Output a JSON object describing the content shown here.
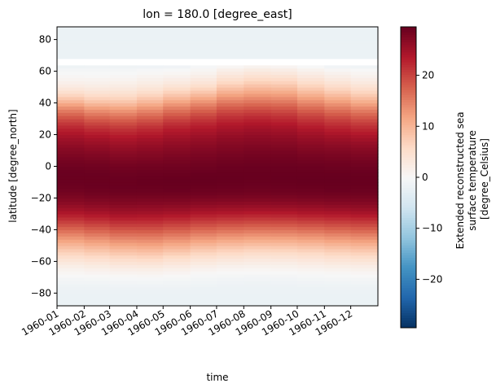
{
  "chart_data": {
    "type": "heatmap",
    "title": "lon = 180.0 [degree_east]",
    "xlabel": "time",
    "ylabel": "latitude [degree_north]",
    "x": [
      "1960-01",
      "1960-02",
      "1960-03",
      "1960-04",
      "1960-05",
      "1960-06",
      "1960-07",
      "1960-08",
      "1960-09",
      "1960-10",
      "1960-11",
      "1960-12"
    ],
    "xlim": [
      "1960-01",
      "1961-01"
    ],
    "ylim": [
      -88,
      88
    ],
    "yticks": [
      -80,
      -60,
      -40,
      -20,
      0,
      20,
      40,
      60,
      80
    ],
    "lat_step": 2,
    "fill_value": -1.8,
    "profile_lat": [
      -88,
      -80,
      -76,
      -74,
      -72,
      -70,
      -68,
      -66,
      -64,
      -62,
      -60,
      -58,
      -56,
      -54,
      -52,
      -50,
      -48,
      -46,
      -44,
      -42,
      -40,
      -38,
      -36,
      -34,
      -32,
      -30,
      -28,
      -26,
      -24,
      -22,
      -20,
      -18,
      -16,
      -14,
      -12,
      -10,
      -8,
      -6,
      -4,
      -2,
      0,
      2,
      4,
      6,
      8,
      10,
      12,
      14,
      16,
      18,
      20,
      22,
      24,
      26,
      28,
      30,
      32,
      34,
      36,
      38,
      40,
      42,
      44,
      46,
      48,
      50,
      52,
      54,
      56,
      58,
      60,
      62,
      64,
      66,
      68,
      70,
      88
    ],
    "profiles": [
      [
        -1.8,
        -1.8,
        -1.5,
        -1.2,
        -0.8,
        -0.3,
        0.2,
        0.8,
        1.5,
        2.5,
        3.5,
        4.6,
        5.8,
        7.0,
        8.3,
        9.6,
        11.0,
        12.4,
        13.8,
        15.3,
        16.7,
        18.2,
        19.7,
        21.0,
        22.3,
        23.5,
        24.5,
        25.5,
        26.3,
        27.0,
        27.6,
        28.1,
        28.6,
        28.9,
        29.1,
        29.2,
        29.3,
        29.3,
        29.2,
        29.1,
        28.9,
        28.6,
        28.3,
        28.0,
        27.6,
        27.2,
        26.7,
        26.2,
        25.6,
        25.0,
        24.3,
        23.5,
        22.6,
        21.6,
        20.5,
        19.2,
        17.8,
        16.3,
        14.6,
        12.8,
        10.9,
        9.0,
        7.2,
        5.6,
        4.2,
        3.0,
        2.0,
        1.2,
        0.6,
        0.1,
        -0.4,
        -0.9,
        -1.8,
        -1.8,
        -1.8,
        -1.8,
        -1.8
      ],
      [
        -1.8,
        -1.8,
        -1.5,
        -1.2,
        -0.7,
        -0.2,
        0.4,
        1.1,
        1.9,
        2.9,
        4.0,
        5.2,
        6.4,
        7.7,
        9.0,
        10.4,
        11.8,
        13.2,
        14.7,
        16.2,
        17.6,
        19.0,
        20.4,
        21.7,
        22.9,
        24.0,
        25.0,
        25.9,
        26.6,
        27.3,
        27.9,
        28.4,
        28.8,
        29.1,
        29.2,
        29.3,
        29.3,
        29.3,
        29.2,
        29.0,
        28.8,
        28.5,
        28.1,
        27.7,
        27.3,
        26.8,
        26.3,
        25.7,
        25.1,
        24.4,
        23.6,
        22.7,
        21.7,
        20.6,
        19.3,
        17.9,
        16.4,
        14.8,
        13.0,
        11.2,
        9.3,
        7.6,
        6.1,
        4.8,
        3.6,
        2.6,
        1.8,
        1.1,
        0.5,
        0.1,
        -0.4,
        -0.8,
        -1.8,
        -1.8,
        -1.8,
        -1.8,
        -1.8
      ],
      [
        -1.8,
        -1.8,
        -1.4,
        -1.1,
        -0.6,
        -0.1,
        0.6,
        1.4,
        2.3,
        3.4,
        4.6,
        5.8,
        7.1,
        8.4,
        9.8,
        11.2,
        12.6,
        14.1,
        15.6,
        17.0,
        18.4,
        19.8,
        21.1,
        22.4,
        23.5,
        24.6,
        25.5,
        26.3,
        27.0,
        27.6,
        28.1,
        28.6,
        29.0,
        29.2,
        29.3,
        29.3,
        29.3,
        29.2,
        29.0,
        28.8,
        28.6,
        28.2,
        27.8,
        27.4,
        26.9,
        26.4,
        25.9,
        25.3,
        24.6,
        23.9,
        23.1,
        22.2,
        21.2,
        20.0,
        18.7,
        17.3,
        15.8,
        14.2,
        12.5,
        10.7,
        9.0,
        7.4,
        6.0,
        4.8,
        3.7,
        2.7,
        1.9,
        1.2,
        0.6,
        0.1,
        -0.4,
        -0.8,
        -1.8,
        -1.8,
        -1.8,
        -1.8,
        -1.8
      ],
      [
        -1.8,
        -1.8,
        -1.4,
        -1.0,
        -0.6,
        0.0,
        0.7,
        1.5,
        2.5,
        3.6,
        4.8,
        6.1,
        7.4,
        8.7,
        10.1,
        11.5,
        12.9,
        14.3,
        15.7,
        17.1,
        18.5,
        19.8,
        21.1,
        22.3,
        23.4,
        24.5,
        25.4,
        26.2,
        26.9,
        27.5,
        28.1,
        28.6,
        29.0,
        29.2,
        29.4,
        29.4,
        29.4,
        29.3,
        29.1,
        28.9,
        28.7,
        28.4,
        28.0,
        27.6,
        27.2,
        26.7,
        26.2,
        25.7,
        25.1,
        24.4,
        23.6,
        22.8,
        21.9,
        20.8,
        19.6,
        18.3,
        16.9,
        15.4,
        13.8,
        12.1,
        10.4,
        8.8,
        7.3,
        5.9,
        4.6,
        3.5,
        2.6,
        1.8,
        1.1,
        0.5,
        0.0,
        -0.6,
        -1.8,
        -1.8,
        -1.8,
        -1.8,
        -1.8
      ],
      [
        -1.8,
        -1.8,
        -1.5,
        -1.1,
        -0.7,
        -0.2,
        0.4,
        1.1,
        2.0,
        3.0,
        4.1,
        5.3,
        6.6,
        7.9,
        9.3,
        10.7,
        12.1,
        13.5,
        15.0,
        16.4,
        17.8,
        19.2,
        20.5,
        21.8,
        23.0,
        24.1,
        25.1,
        26.0,
        26.8,
        27.5,
        28.1,
        28.6,
        29.0,
        29.3,
        29.4,
        29.5,
        29.5,
        29.4,
        29.2,
        29.0,
        28.8,
        28.5,
        28.2,
        27.9,
        27.5,
        27.1,
        26.7,
        26.2,
        25.7,
        25.1,
        24.5,
        23.8,
        23.0,
        22.1,
        21.1,
        19.9,
        18.6,
        17.2,
        15.7,
        14.1,
        12.4,
        10.7,
        9.0,
        7.5,
        6.0,
        4.7,
        3.5,
        2.5,
        1.6,
        0.8,
        0.2,
        -0.5,
        -1.8,
        -1.8,
        -1.8,
        -1.8,
        -1.8
      ],
      [
        -1.8,
        -1.8,
        -1.6,
        -1.3,
        -0.9,
        -0.5,
        0.0,
        0.6,
        1.4,
        2.3,
        3.3,
        4.4,
        5.6,
        6.9,
        8.2,
        9.6,
        11.0,
        12.5,
        14.0,
        15.4,
        16.9,
        18.3,
        19.7,
        21.0,
        22.3,
        23.5,
        24.6,
        25.6,
        26.5,
        27.2,
        27.9,
        28.5,
        28.9,
        29.2,
        29.4,
        29.5,
        29.5,
        29.5,
        29.3,
        29.1,
        28.9,
        28.7,
        28.4,
        28.1,
        27.8,
        27.4,
        27.0,
        26.6,
        26.1,
        25.6,
        25.0,
        24.4,
        23.7,
        22.9,
        22.0,
        21.0,
        19.8,
        18.5,
        17.1,
        15.6,
        14.0,
        12.3,
        10.6,
        8.9,
        7.3,
        5.8,
        4.5,
        3.4,
        2.4,
        1.5,
        0.8,
        0.1,
        -0.6,
        -1.8,
        -1.8,
        -1.8,
        -1.8
      ],
      [
        -1.8,
        -1.8,
        -1.7,
        -1.4,
        -1.1,
        -0.7,
        -0.2,
        0.3,
        1.0,
        1.8,
        2.8,
        3.8,
        5.0,
        6.2,
        7.5,
        8.9,
        10.3,
        11.8,
        13.3,
        14.8,
        16.3,
        17.7,
        19.2,
        20.6,
        21.9,
        23.2,
        24.4,
        25.4,
        26.3,
        27.1,
        27.8,
        28.4,
        28.8,
        29.1,
        29.3,
        29.4,
        29.5,
        29.5,
        29.4,
        29.3,
        29.1,
        28.9,
        28.7,
        28.4,
        28.1,
        27.8,
        27.5,
        27.1,
        26.7,
        26.2,
        25.7,
        25.1,
        24.5,
        23.8,
        23.0,
        22.1,
        21.1,
        20.0,
        18.8,
        17.4,
        15.9,
        14.4,
        12.8,
        11.2,
        9.7,
        8.2,
        6.8,
        5.5,
        4.3,
        3.2,
        2.2,
        1.2,
        -0.2,
        -1.8,
        -1.8,
        -1.8,
        -1.8
      ],
      [
        -1.8,
        -1.8,
        -1.7,
        -1.5,
        -1.2,
        -0.8,
        -0.3,
        0.2,
        0.8,
        1.6,
        2.5,
        3.5,
        4.6,
        5.8,
        7.1,
        8.5,
        9.9,
        11.4,
        12.9,
        14.4,
        15.9,
        17.4,
        18.9,
        20.3,
        21.7,
        23.0,
        24.2,
        25.3,
        26.2,
        27.0,
        27.7,
        28.3,
        28.7,
        29.0,
        29.2,
        29.3,
        29.4,
        29.4,
        29.4,
        29.3,
        29.2,
        29.0,
        28.8,
        28.6,
        28.3,
        28.0,
        27.7,
        27.3,
        26.9,
        26.5,
        26.0,
        25.5,
        24.9,
        24.2,
        23.5,
        22.6,
        21.6,
        20.5,
        19.3,
        17.9,
        16.5,
        15.0,
        13.5,
        12.0,
        10.6,
        9.2,
        7.8,
        6.5,
        5.3,
        4.1,
        3.0,
        1.8,
        0.3,
        -1.8,
        -1.8,
        -1.8,
        -1.8
      ],
      [
        -1.8,
        -1.8,
        -1.7,
        -1.4,
        -1.1,
        -0.7,
        -0.3,
        0.3,
        0.9,
        1.7,
        2.6,
        3.6,
        4.7,
        5.9,
        7.2,
        8.6,
        10.0,
        11.5,
        13.0,
        14.5,
        16.0,
        17.5,
        19.0,
        20.4,
        21.8,
        23.1,
        24.3,
        25.4,
        26.3,
        27.1,
        27.8,
        28.4,
        28.8,
        29.1,
        29.3,
        29.4,
        29.5,
        29.5,
        29.4,
        29.3,
        29.2,
        29.0,
        28.8,
        28.6,
        28.3,
        28.0,
        27.6,
        27.2,
        26.8,
        26.3,
        25.8,
        25.2,
        24.6,
        23.9,
        23.1,
        22.2,
        21.2,
        20.1,
        18.9,
        17.6,
        16.2,
        14.7,
        13.2,
        11.7,
        10.3,
        8.9,
        7.5,
        6.2,
        5.0,
        3.8,
        2.7,
        1.5,
        0.0,
        -1.8,
        -1.8,
        -1.8,
        -1.8
      ],
      [
        -1.8,
        -1.8,
        -1.6,
        -1.3,
        -1.0,
        -0.6,
        -0.1,
        0.5,
        1.2,
        2.0,
        3.0,
        4.0,
        5.1,
        6.3,
        7.6,
        9.0,
        10.4,
        11.9,
        13.4,
        14.9,
        16.4,
        17.9,
        19.4,
        20.8,
        22.2,
        23.5,
        24.6,
        25.6,
        26.5,
        27.3,
        28.0,
        28.5,
        28.9,
        29.2,
        29.4,
        29.5,
        29.5,
        29.5,
        29.4,
        29.3,
        29.1,
        28.9,
        28.6,
        28.3,
        28.0,
        27.6,
        27.2,
        26.7,
        26.2,
        25.7,
        25.1,
        24.4,
        23.7,
        22.9,
        22.0,
        21.0,
        19.9,
        18.7,
        17.4,
        16.0,
        14.5,
        13.0,
        11.5,
        10.0,
        8.6,
        7.2,
        5.9,
        4.7,
        3.6,
        2.6,
        1.6,
        0.6,
        -0.6,
        -1.8,
        -1.8,
        -1.8,
        -1.8
      ],
      [
        -1.8,
        -1.8,
        -1.5,
        -1.2,
        -0.9,
        -0.4,
        0.1,
        0.7,
        1.5,
        2.4,
        3.4,
        4.5,
        5.7,
        6.9,
        8.2,
        9.6,
        11.0,
        12.5,
        14.0,
        15.5,
        17.0,
        18.4,
        19.8,
        21.2,
        22.5,
        23.7,
        24.8,
        25.8,
        26.7,
        27.4,
        28.1,
        28.6,
        29.0,
        29.3,
        29.4,
        29.5,
        29.5,
        29.5,
        29.4,
        29.2,
        29.0,
        28.8,
        28.5,
        28.2,
        27.8,
        27.4,
        26.9,
        26.4,
        25.8,
        25.2,
        24.5,
        23.7,
        22.9,
        22.0,
        21.0,
        19.9,
        18.7,
        17.4,
        16.0,
        14.5,
        13.0,
        11.5,
        10.0,
        8.5,
        7.1,
        5.8,
        4.6,
        3.5,
        2.5,
        1.6,
        0.8,
        0.0,
        -1.8,
        -1.8,
        -1.8,
        -1.8,
        -1.8
      ],
      [
        -1.8,
        -1.8,
        -1.5,
        -1.2,
        -0.8,
        -0.3,
        0.2,
        0.9,
        1.7,
        2.6,
        3.7,
        4.8,
        6.0,
        7.3,
        8.6,
        10.0,
        11.4,
        12.9,
        14.4,
        15.9,
        17.4,
        18.8,
        20.2,
        21.5,
        22.8,
        24.0,
        25.1,
        26.0,
        26.8,
        27.5,
        28.1,
        28.6,
        29.0,
        29.2,
        29.4,
        29.4,
        29.4,
        29.4,
        29.3,
        29.1,
        28.9,
        28.6,
        28.3,
        27.9,
        27.5,
        27.1,
        26.6,
        26.0,
        25.4,
        24.7,
        23.9,
        23.1,
        22.2,
        21.2,
        20.1,
        18.9,
        17.6,
        16.2,
        14.7,
        13.1,
        11.5,
        10.0,
        8.5,
        7.1,
        5.8,
        4.6,
        3.5,
        2.5,
        1.6,
        0.9,
        0.3,
        -0.3,
        -1.8,
        -1.8,
        -1.8,
        -1.8,
        -1.8
      ]
    ],
    "colorbar": {
      "label": "Extended reconstructed sea surface temperature [degree_Celsius]",
      "label_lines": [
        "Extended reconstructed sea",
        "surface temperature",
        "[degree_Celsius]"
      ],
      "vmin": -29.5,
      "vmax": 29.5,
      "ticks": [
        -20,
        -10,
        0,
        10,
        20
      ],
      "colormap": "RdBu_r"
    },
    "colormap_stops": [
      "#053061",
      "#2166ac",
      "#4393c3",
      "#92c5de",
      "#d1e5f0",
      "#f7f7f7",
      "#fddbc7",
      "#f4a582",
      "#d6604d",
      "#b2182b",
      "#67001f"
    ],
    "missing_color": "#ffffff",
    "grid": false,
    "legend": "none"
  }
}
